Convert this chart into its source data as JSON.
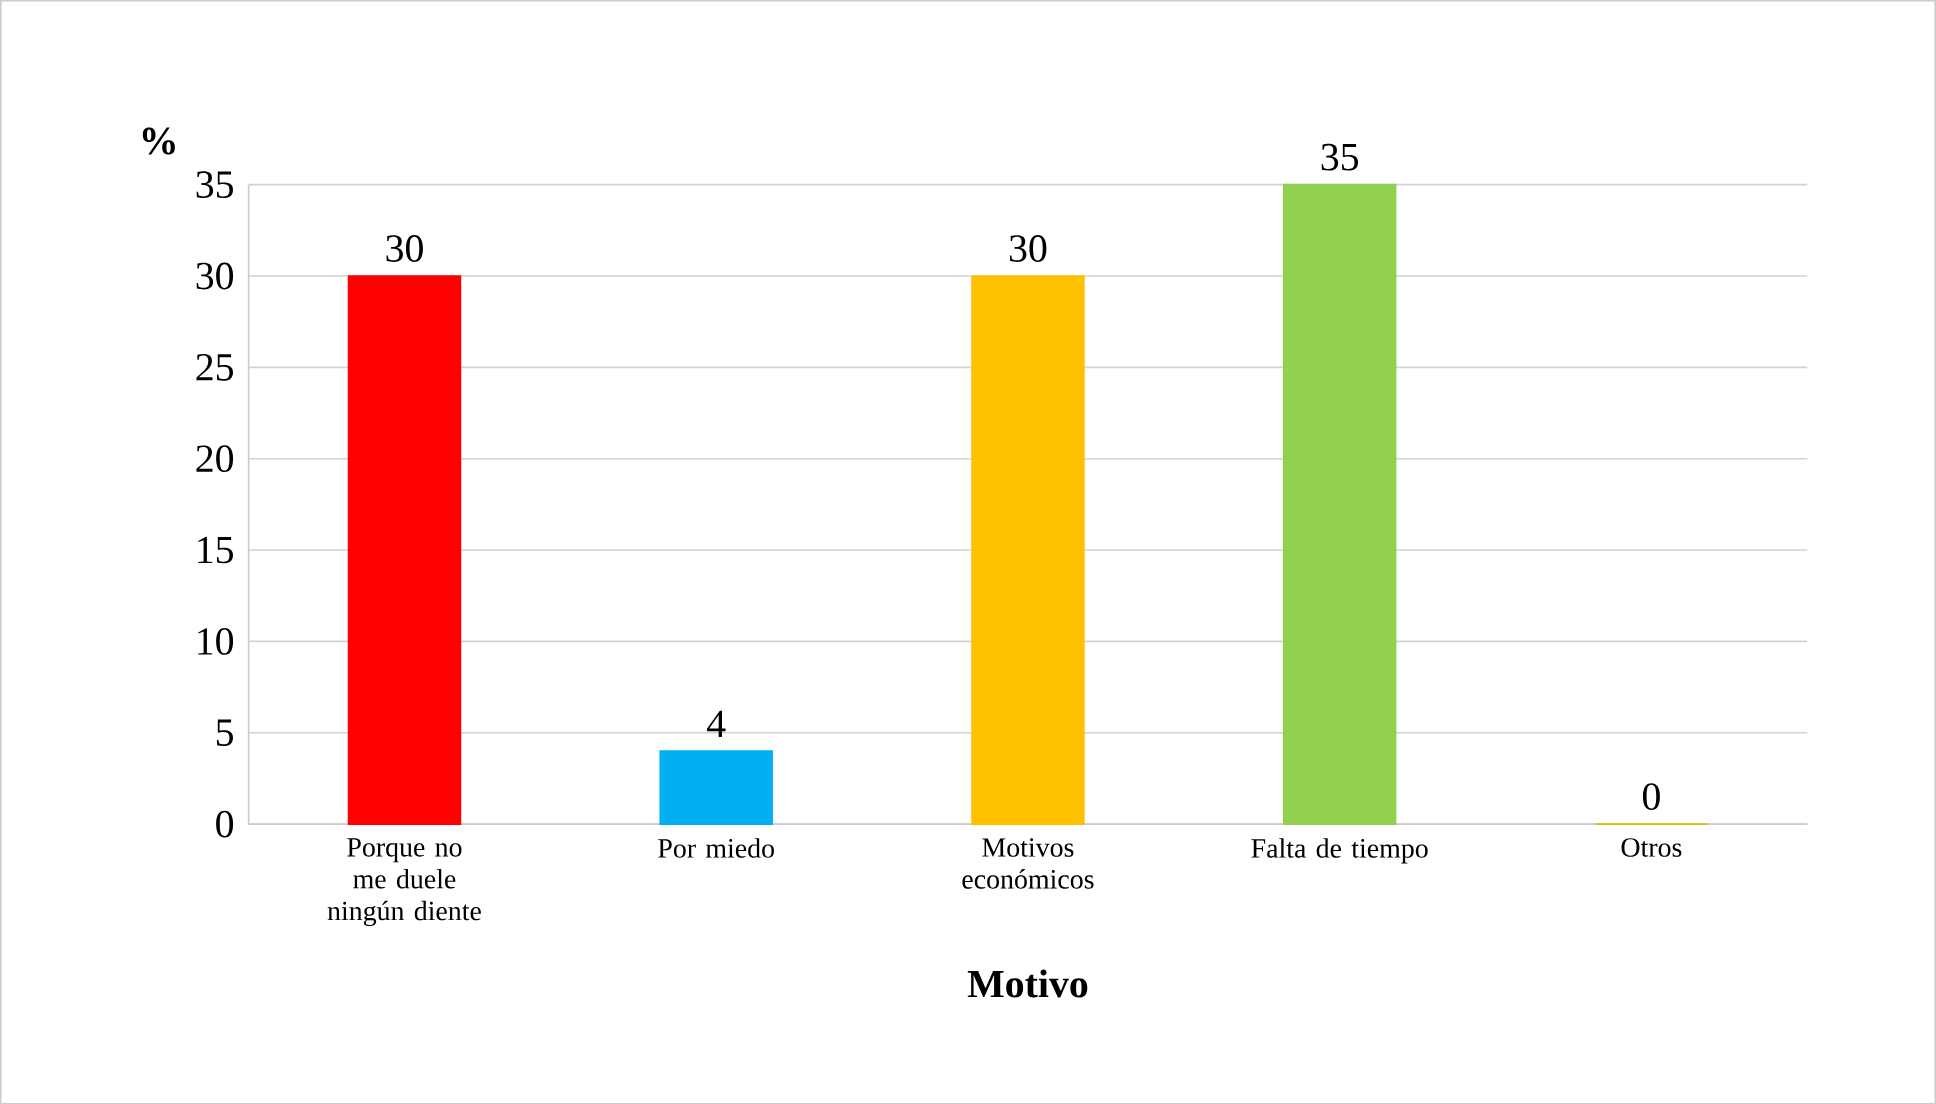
{
  "chart_data": {
    "type": "bar",
    "ylabel": "%",
    "xlabel": "Motivo",
    "categories": [
      "Porque no me duele ningún diente",
      "Por miedo",
      "Motivos económicos",
      "Falta de tiempo",
      "Otros"
    ],
    "values": [
      30,
      4,
      30,
      35,
      0
    ],
    "colors": [
      "#ff0000",
      "#00b0f0",
      "#ffc000",
      "#92d050",
      "#c8c800"
    ],
    "ylim": [
      0,
      35
    ],
    "yticks": [
      0,
      5,
      10,
      15,
      20,
      25,
      30,
      35
    ],
    "grid": "y",
    "data_labels": true
  }
}
